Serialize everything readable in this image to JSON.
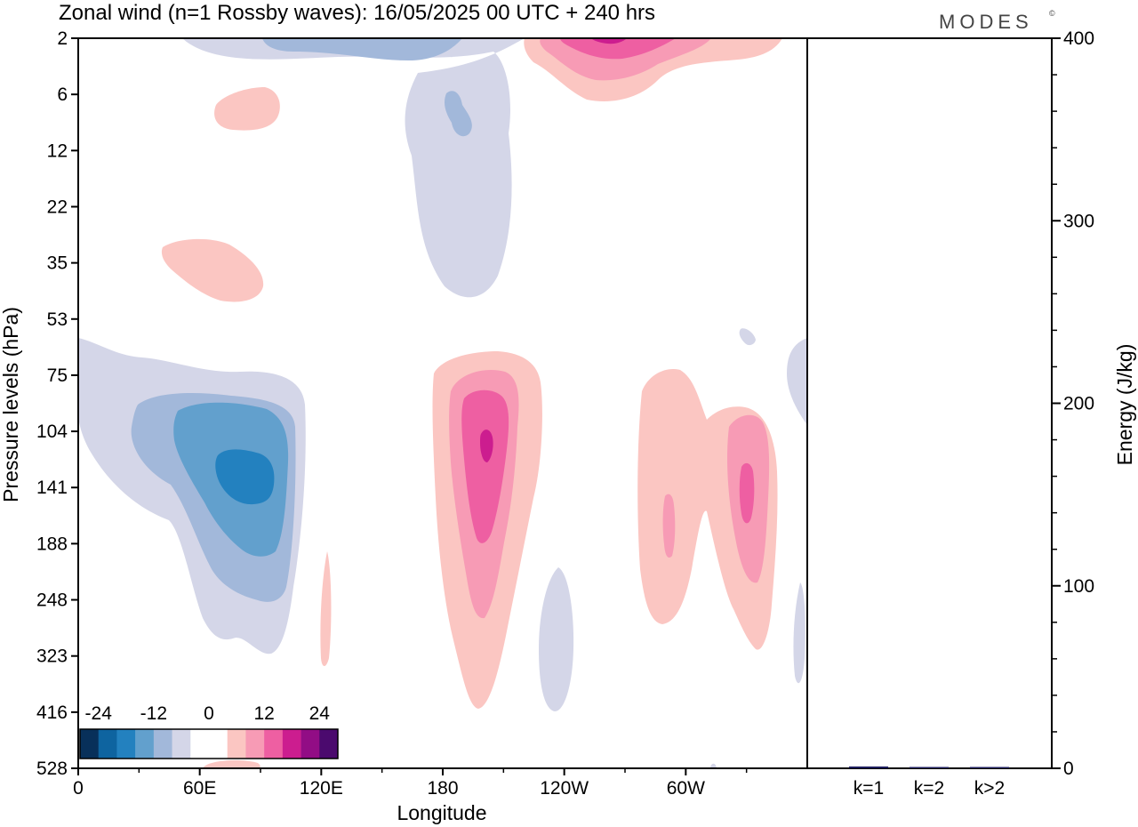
{
  "title": "Zonal wind (n=1 Rossby waves):  16/05/2025  00 UTC  + 240 hrs",
  "logo": "MODES",
  "logo_mark": "©",
  "chart_data": [
    {
      "type": "heatmap",
      "xlabel": "Longitude",
      "ylabel": "Pressure levels (hPa)",
      "x_ticks": [
        "0",
        "60E",
        "120E",
        "180",
        "120W",
        "60W"
      ],
      "y_ticks": [
        "2",
        "6",
        "12",
        "22",
        "35",
        "53",
        "75",
        "104",
        "141",
        "188",
        "248",
        "323",
        "416",
        "528"
      ],
      "colorbar": {
        "tick_labels": [
          "-24",
          "-12",
          "0",
          "12",
          "24"
        ],
        "colors": [
          "#08305a",
          "#0e64a0",
          "#2381bf",
          "#62a0cd",
          "#a2b8da",
          "#d4d6e8",
          "#ffffff",
          "#ffffff",
          "#fbc6c2",
          "#f79bb5",
          "#ee5fa2",
          "#cc1d8f",
          "#920d85",
          "#4b0a6e"
        ]
      },
      "contours": [
        {
          "value": -3,
          "color": "#d4d6e8"
        },
        {
          "value": -6,
          "color": "#a2b8da"
        },
        {
          "value": -9,
          "color": "#62a0cd"
        },
        {
          "value": -12,
          "color": "#2381bf"
        },
        {
          "value": 3,
          "color": "#fbc6c2"
        },
        {
          "value": 6,
          "color": "#f79bb5"
        },
        {
          "value": 9,
          "color": "#ee5fa2"
        },
        {
          "value": 12,
          "color": "#cc1d8f"
        }
      ]
    },
    {
      "type": "bar",
      "ylabel": "Energy (J/kg)",
      "categories": [
        "k=1",
        "k=2",
        "k>2"
      ],
      "values": [
        1,
        0.3,
        0.5
      ],
      "ylim": [
        0,
        400
      ],
      "y_ticks": [
        "0",
        "100",
        "200",
        "300",
        "400"
      ],
      "bar_color": "#1c1c5c"
    }
  ]
}
